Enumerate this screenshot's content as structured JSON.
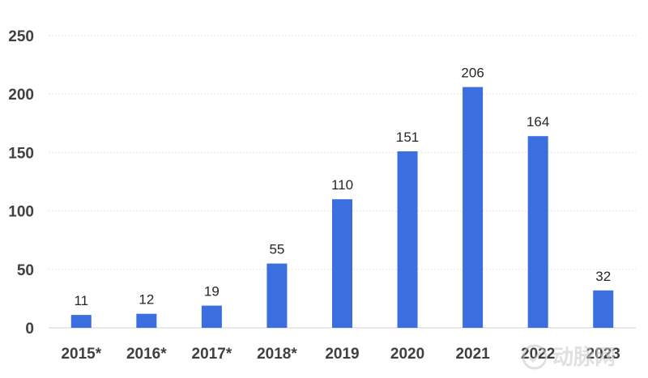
{
  "chart_data": {
    "type": "bar",
    "categories": [
      "2015*",
      "2016*",
      "2017*",
      "2018*",
      "2019",
      "2020",
      "2021",
      "2022",
      "2023"
    ],
    "values": [
      11,
      12,
      19,
      55,
      110,
      151,
      206,
      164,
      32
    ],
    "title": "",
    "xlabel": "",
    "ylabel": "",
    "ylim": [
      0,
      250
    ],
    "yticks": [
      0,
      50,
      100,
      150,
      200,
      250
    ],
    "grid": true,
    "data_labels": true,
    "bar_color": "#3b6fe0"
  },
  "watermark": {
    "text": "动脉网"
  }
}
